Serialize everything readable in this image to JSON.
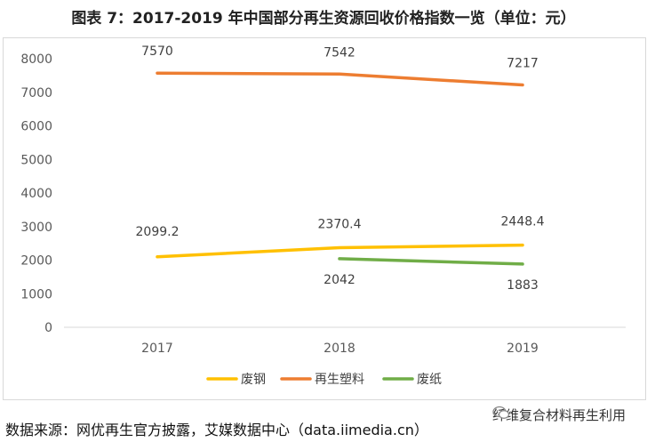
{
  "header": {
    "title": "图表 7：2017-2019 年中国部分再生资源回收价格指数一览（单位：元）"
  },
  "footer": {
    "source": "数据来源：网优再生官方披露，艾媒数据中心（data.iimedia.cn）"
  },
  "watermark": {
    "text": "纤维复合材料再生利用",
    "icon": "wechat-icon"
  },
  "chart_data": {
    "type": "line",
    "title": "图表 7：2017-2019 年中国部分再生资源回收价格指数一览（单位：元）",
    "x": [
      "2017",
      "2018",
      "2019"
    ],
    "ylim": [
      0,
      8000
    ],
    "yticks": [
      0,
      1000,
      2000,
      3000,
      4000,
      5000,
      6000,
      7000,
      8000
    ],
    "grid": false,
    "legend_position": "bottom",
    "series": [
      {
        "name": "废钢",
        "color": "#FFC000",
        "values": [
          2099.2,
          2370.4,
          2448.4
        ],
        "labels": [
          "2099.2",
          "2370.4",
          "2448.4"
        ]
      },
      {
        "name": "再生塑料",
        "color": "#ED7D31",
        "values": [
          7570,
          7542,
          7217
        ],
        "labels": [
          "7570",
          "7542",
          "7217"
        ]
      },
      {
        "name": "废纸",
        "color": "#70AD47",
        "values": [
          null,
          2042,
          1883
        ],
        "labels": [
          "",
          "2042",
          "1883"
        ]
      }
    ]
  }
}
